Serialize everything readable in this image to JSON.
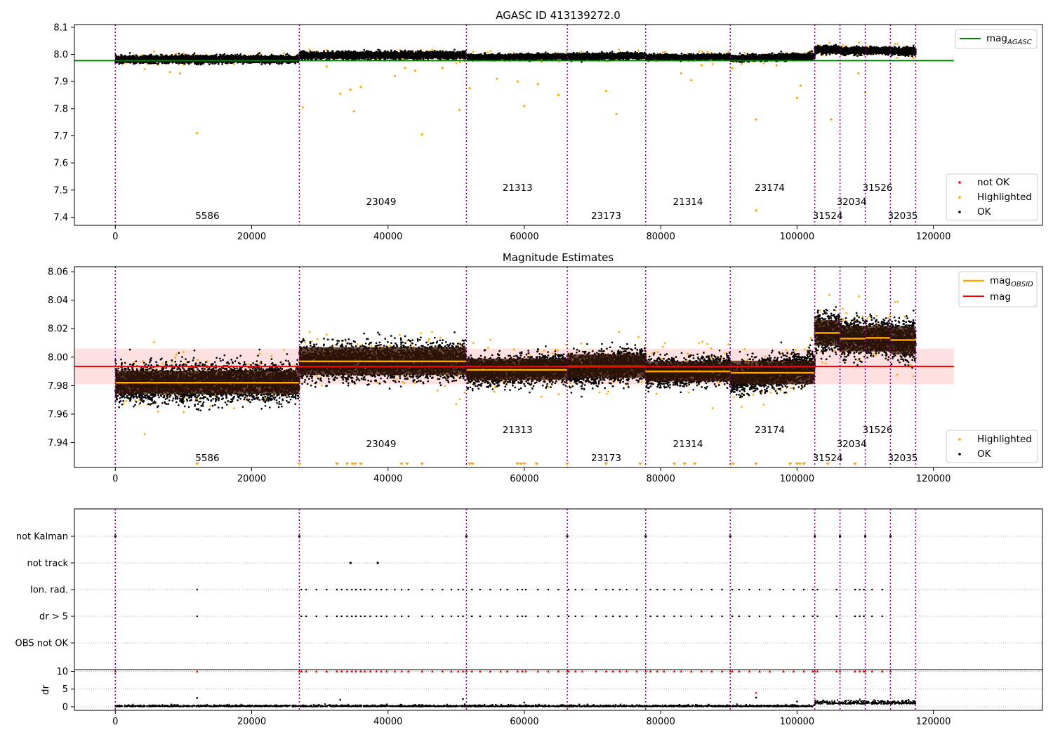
{
  "chart_data": [
    {
      "type": "scatter",
      "title": "AGASC ID 413139272.0",
      "xlim": [
        -6000,
        136000
      ],
      "ylim": [
        7.37,
        8.11
      ],
      "xticks": [
        0,
        20000,
        40000,
        60000,
        80000,
        100000,
        120000
      ],
      "yticks": [
        7.4,
        7.5,
        7.6,
        7.7,
        7.8,
        7.9,
        8.0,
        8.1
      ],
      "ytick_labels": [
        "7.4",
        "7.5",
        "7.6",
        "7.7",
        "7.8",
        "7.9",
        "8.0",
        "8.1"
      ],
      "reference_line": {
        "label": "mag",
        "label_sub": "AGASC",
        "value": 7.977,
        "x_range": [
          -6000,
          123000
        ],
        "color": "#008000"
      },
      "legend_upper": {
        "placement": "top-right",
        "entries": [
          {
            "label": "mag",
            "sub": "AGASC",
            "color": "#008000"
          }
        ]
      },
      "legend_lower": {
        "placement": "bottom-right",
        "entries": [
          {
            "label": "not OK",
            "color": "#ff0000"
          },
          {
            "label": "Highlighted",
            "color": "#ffa500"
          },
          {
            "label": "OK",
            "color": "#000000"
          }
        ]
      },
      "highlighted_points": [
        [
          12000,
          7.71
        ],
        [
          45000,
          7.705
        ],
        [
          94000,
          7.425
        ],
        [
          94000,
          7.76
        ],
        [
          105000,
          7.76
        ],
        [
          73500,
          7.78
        ],
        [
          50500,
          7.795
        ],
        [
          35000,
          7.79
        ],
        [
          27500,
          7.805
        ],
        [
          60000,
          7.81
        ],
        [
          65000,
          7.85
        ],
        [
          33000,
          7.855
        ],
        [
          34500,
          7.87
        ],
        [
          36000,
          7.88
        ],
        [
          52000,
          7.875
        ],
        [
          72000,
          7.865
        ],
        [
          100000,
          7.84
        ],
        [
          100500,
          7.885
        ],
        [
          109000,
          7.93
        ],
        [
          110000,
          7.86
        ],
        [
          83000,
          7.93
        ],
        [
          84500,
          7.905
        ],
        [
          41000,
          7.92
        ],
        [
          42500,
          7.95
        ],
        [
          56000,
          7.91
        ],
        [
          59000,
          7.9
        ],
        [
          62000,
          7.89
        ],
        [
          44000,
          7.94
        ],
        [
          8000,
          7.935
        ],
        [
          9500,
          7.93
        ],
        [
          31000,
          7.955
        ],
        [
          48000,
          7.95
        ],
        [
          86000,
          7.96
        ],
        [
          90500,
          7.95
        ],
        [
          97000,
          7.96
        ]
      ]
    },
    {
      "type": "scatter",
      "title": "Magnitude Estimates",
      "xlim": [
        -6000,
        136000
      ],
      "ylim": [
        7.9225,
        8.0635
      ],
      "xticks": [
        0,
        20000,
        40000,
        60000,
        80000,
        100000,
        120000
      ],
      "yticks": [
        7.94,
        7.96,
        7.98,
        8.0,
        8.02,
        8.04,
        8.06
      ],
      "ytick_labels": [
        "7.94",
        "7.96",
        "7.98",
        "8.00",
        "8.02",
        "8.04",
        "8.06"
      ],
      "mean_mag": {
        "label": "mag",
        "value": 7.9935,
        "band": [
          7.981,
          8.006
        ],
        "x_range": [
          -6000,
          123000
        ],
        "color": "#ff0000"
      },
      "obsid_mags": [
        {
          "x_range": [
            0,
            27000
          ],
          "value": 7.982,
          "band": [
            7.974,
            7.9905
          ]
        },
        {
          "x_range": [
            27000,
            51500
          ],
          "value": 7.997,
          "band": [
            7.9875,
            8.007
          ]
        },
        {
          "x_range": [
            51500,
            66300
          ],
          "value": 7.991,
          "band": [
            7.984,
            7.999
          ]
        },
        {
          "x_range": [
            66300,
            77800
          ],
          "value": 7.9935,
          "band": [
            7.9855,
            8.002
          ]
        },
        {
          "x_range": [
            77800,
            90200
          ],
          "value": 7.99,
          "band": [
            7.983,
            7.997
          ]
        },
        {
          "x_range": [
            90200,
            102600
          ],
          "value": 7.989,
          "band": [
            7.981,
            7.9975
          ]
        },
        {
          "x_range": [
            102600,
            106300
          ],
          "value": 8.017,
          "band": [
            8.008,
            8.026
          ]
        },
        {
          "x_range": [
            106300,
            110000
          ],
          "value": 8.013,
          "band": [
            8.004,
            8.022
          ]
        },
        {
          "x_range": [
            110000,
            113700
          ],
          "value": 8.0135,
          "band": [
            8.004,
            8.022
          ]
        },
        {
          "x_range": [
            113700,
            117400
          ],
          "value": 8.012,
          "band": [
            8.002,
            8.0215
          ]
        }
      ],
      "legend_upper": {
        "placement": "top-right",
        "entries": [
          {
            "label": "mag",
            "sub": "OBSID",
            "color": "#ffa500"
          },
          {
            "label": "mag",
            "color": "#ff0000"
          }
        ]
      },
      "legend_lower": {
        "placement": "bottom-right",
        "entries": [
          {
            "label": "Highlighted",
            "color": "#ffa500"
          },
          {
            "label": "OK",
            "color": "#000000"
          }
        ]
      },
      "offscale_markers_x": [
        12000,
        27000,
        32500,
        34000,
        34800,
        35200,
        36000,
        42000,
        42800,
        45000,
        52000,
        52400,
        59000,
        59500,
        60000,
        61800,
        66300,
        72000,
        77000,
        82000,
        83500,
        85000,
        90600,
        94000,
        99000,
        100000,
        100400,
        101000,
        104500,
        108500
      ]
    },
    {
      "type": "scatter",
      "title": "",
      "xlim": [
        -6000,
        136000
      ],
      "xticks": [
        0,
        20000,
        40000,
        60000,
        80000,
        100000,
        120000
      ],
      "flag_rows": [
        "not Kalman",
        "not track",
        "Ion. rad.",
        "dr > 5",
        "OBS not OK"
      ],
      "dr_axis": {
        "ylabel": "dr",
        "yticks": [
          0,
          5,
          10
        ],
        "ylim": [
          -1,
          10.5
        ]
      },
      "not_kalman_x": [
        0,
        27000,
        51500,
        66300,
        77800,
        90200,
        102600,
        106300,
        110000,
        113700
      ],
      "not_track_x": [
        34500,
        38500
      ],
      "ion_rad_x": [
        12000,
        27300,
        28000,
        29500,
        31000,
        32500,
        33200,
        34000,
        34700,
        35300,
        36000,
        36600,
        37400,
        38300,
        39000,
        39800,
        41000,
        42000,
        43000,
        45000,
        46500,
        48000,
        49300,
        50300,
        51000,
        52300,
        53500,
        55000,
        56500,
        57500,
        59000,
        59700,
        60200,
        62000,
        63500,
        65000,
        66500,
        67500,
        68500,
        70500,
        72000,
        73000,
        74000,
        75000,
        76500,
        78500,
        79500,
        80500,
        82000,
        83000,
        84500,
        86000,
        87500,
        89000,
        90500,
        91500,
        93000,
        94500,
        96000,
        98000,
        99500,
        101000,
        102300,
        103000,
        105800,
        108500,
        109200,
        109800,
        111000,
        112500
      ],
      "dr5_x": [
        12000,
        27300,
        28000,
        29500,
        31000,
        32500,
        33200,
        34000,
        34700,
        35300,
        36000,
        36600,
        37400,
        38300,
        39000,
        39800,
        41000,
        42000,
        43000,
        45000,
        46500,
        48000,
        49300,
        50300,
        51000,
        52300,
        53500,
        55000,
        56500,
        57500,
        59000,
        59700,
        60200,
        62000,
        63500,
        65000,
        66500,
        67500,
        68500,
        70500,
        72000,
        73000,
        74000,
        75000,
        76500,
        78500,
        79500,
        80500,
        82000,
        83000,
        84500,
        86000,
        87500,
        89000,
        90500,
        91500,
        93000,
        94500,
        96000,
        98000,
        99500,
        101000,
        102300,
        103000,
        105800,
        108500,
        109200,
        109800,
        111000,
        112500
      ],
      "dr_outliers": [
        [
          12000,
          2.5
        ],
        [
          33000,
          2.0
        ],
        [
          51000,
          2.2
        ],
        [
          60000,
          1.2
        ],
        [
          94000,
          3.9
        ],
        [
          94000,
          2.6
        ],
        [
          100000,
          1.5
        ]
      ]
    }
  ],
  "obsid_labels": [
    {
      "text": "5586",
      "x": 13500,
      "level": 2
    },
    {
      "text": "23049",
      "x": 39000,
      "level": 1
    },
    {
      "text": "21313",
      "x": 59000,
      "level": 0
    },
    {
      "text": "23173",
      "x": 72000,
      "level": 2
    },
    {
      "text": "21314",
      "x": 84000,
      "level": 1
    },
    {
      "text": "23174",
      "x": 96000,
      "level": 0
    },
    {
      "text": "31524",
      "x": 104500,
      "level": 2
    },
    {
      "text": "32034",
      "x": 108000,
      "level": 1
    },
    {
      "text": "31526",
      "x": 111800,
      "level": 0
    },
    {
      "text": "32035",
      "x": 115500,
      "level": 2
    }
  ],
  "obsid_boundaries": [
    0,
    27000,
    51500,
    66300,
    77800,
    90200,
    102600,
    106300,
    110000,
    113700,
    117400
  ],
  "segments": [
    {
      "x": [
        0,
        27000
      ],
      "c1": 7.9815,
      "c2": 7.9825,
      "spread": 0.011
    },
    {
      "x": [
        27000,
        51500
      ],
      "c1": 7.9965,
      "c2": 7.9975,
      "spread": 0.0105
    },
    {
      "x": [
        51500,
        66300
      ],
      "c1": 7.99,
      "c2": 7.992,
      "spread": 0.0085
    },
    {
      "x": [
        66300,
        77800
      ],
      "c1": 7.9915,
      "c2": 7.9955,
      "spread": 0.0095
    },
    {
      "x": [
        77800,
        90200
      ],
      "c1": 7.9885,
      "c2": 7.9915,
      "spread": 0.0082
    },
    {
      "x": [
        90200,
        102600
      ],
      "c1": 7.985,
      "c2": 7.993,
      "spread": 0.0098
    },
    {
      "x": [
        102600,
        106300
      ],
      "c1": 8.017,
      "c2": 8.017,
      "spread": 0.011
    },
    {
      "x": [
        106300,
        110000
      ],
      "c1": 8.013,
      "c2": 8.013,
      "spread": 0.011
    },
    {
      "x": [
        110000,
        113700
      ],
      "c1": 8.0135,
      "c2": 8.0135,
      "spread": 0.011
    },
    {
      "x": [
        113700,
        117400
      ],
      "c1": 8.012,
      "c2": 8.012,
      "spread": 0.012
    }
  ],
  "colors": {
    "ok": "#000000",
    "highlighted": "#ffa500",
    "not_ok": "#ff0000",
    "agasc": "#008000",
    "boundary": "#800080",
    "band": "#ffe0e0",
    "obsid_fill": "#3a1808"
  }
}
